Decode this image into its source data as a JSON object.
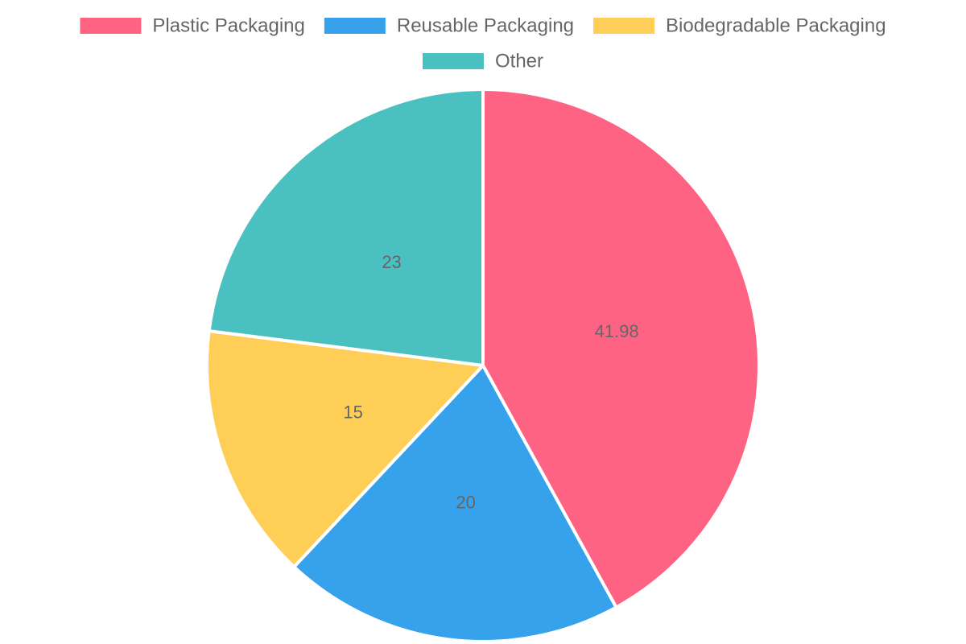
{
  "chart_data": {
    "type": "pie",
    "title": "",
    "legend_position": "top",
    "start_angle": "12 o'clock, clockwise",
    "slices": [
      {
        "label": "Plastic Packaging",
        "value": 41.98,
        "display": "41.98",
        "color": "#FF6384"
      },
      {
        "label": "Reusable Packaging",
        "value": 20,
        "display": "20",
        "color": "#36A2EB"
      },
      {
        "label": "Biodegradable Packaging",
        "value": 15,
        "display": "15",
        "color": "#FFCE56"
      },
      {
        "label": "Other",
        "value": 23,
        "display": "23",
        "color": "#4BC0C0"
      }
    ]
  }
}
